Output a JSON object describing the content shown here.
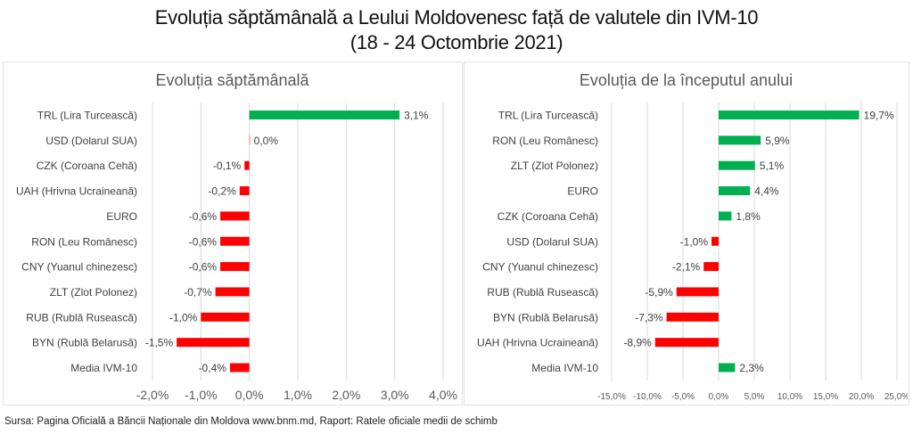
{
  "title": {
    "line1": "Evoluția săptămânală a Leului Moldovenesc față de valutele din IVM-10",
    "line2": "(18 - 24 Octombrie 2021)"
  },
  "colors": {
    "positive": "#00B050",
    "negative": "#FF0000",
    "zero": "#F4A0A0",
    "grid": "#D9D9D9"
  },
  "footer": "Sursa: Pagina Oficială a Băncii Naționale din Moldova www.bnm.md, Raport: Ratele oficiale medii de schimb",
  "chart_data": [
    {
      "type": "bar",
      "orientation": "horizontal",
      "title": "Evoluția săptămânală",
      "categories": [
        "TRL (Lira Turcească)",
        "USD (Dolarul SUA)",
        "CZK (Coroana Cehă)",
        "UAH (Hrivna Ucraineană)",
        "EURO",
        "RON (Leu Românesc)",
        "CNY (Yuanul chinezesc)",
        "ZLT (Zlot Polonez)",
        "RUB (Rublă Rusească)",
        "BYN (Rublă Belarusă)",
        "Media IVM-10"
      ],
      "values": [
        3.1,
        0.0,
        -0.1,
        -0.2,
        -0.6,
        -0.6,
        -0.6,
        -0.7,
        -1.0,
        -1.5,
        -0.4
      ],
      "data_labels": [
        "3,1%",
        "0,0%",
        "-0,1%",
        "-0,2%",
        "-0,6%",
        "-0,6%",
        "-0,6%",
        "-0,7%",
        "-1,0%",
        "-1,5%",
        "-0,4%"
      ],
      "xlim": [
        -2,
        4
      ],
      "xticks": [
        -2,
        -1,
        0,
        1,
        2,
        3,
        4
      ],
      "xtick_labels": [
        "-2,0%",
        "-1,0%",
        "0,0%",
        "1,0%",
        "2,0%",
        "3,0%",
        "4,0%"
      ],
      "xlabel": "",
      "ylabel": "",
      "grid": true,
      "unit": "%"
    },
    {
      "type": "bar",
      "orientation": "horizontal",
      "title": "Evoluția de la începutul anului",
      "categories": [
        "TRL (Lira Turcească)",
        "RON (Leu Românesc)",
        "ZLT (Zlot Polonez)",
        "EURO",
        "CZK (Coroana Cehă)",
        "USD (Dolarul SUA)",
        "CNY (Yuanul chinezesc)",
        "RUB (Rublă Rusească)",
        "BYN (Rublă Belarusă)",
        "UAH (Hrivna Ucraineană)",
        "Media IVM-10"
      ],
      "values": [
        19.7,
        5.9,
        5.1,
        4.4,
        1.8,
        -1.0,
        -2.1,
        -5.9,
        -7.3,
        -8.9,
        2.3
      ],
      "data_labels": [
        "19,7%",
        "5,9%",
        "5,1%",
        "4,4%",
        "1,8%",
        "-1,0%",
        "-2,1%",
        "-5,9%",
        "-7,3%",
        "-8,9%",
        "2,3%"
      ],
      "xlim": [
        -15,
        25
      ],
      "xticks": [
        -15,
        -10,
        -5,
        0,
        5,
        10,
        15,
        20,
        25
      ],
      "xtick_labels": [
        "-15,0%",
        "-10,0%",
        "-5,0%",
        "0,0%",
        "5,0%",
        "10,0%",
        "15,0%",
        "20,0%",
        "25,0%"
      ],
      "xlabel": "",
      "ylabel": "",
      "grid": true,
      "unit": "%"
    }
  ]
}
